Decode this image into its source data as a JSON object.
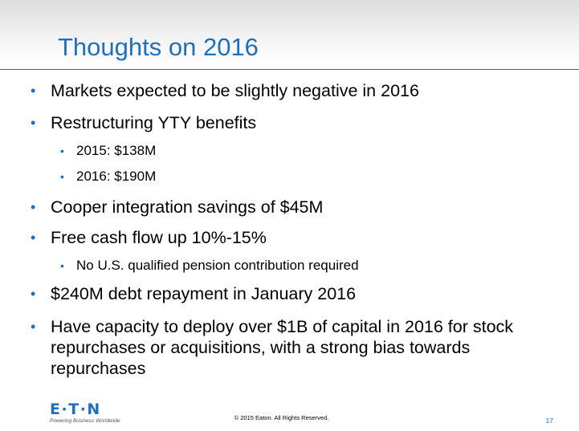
{
  "slide": {
    "title": "Thoughts on 2016",
    "bullets": [
      {
        "level": 1,
        "text": "Markets expected to be slightly negative in 2016"
      },
      {
        "level": 1,
        "text": "Restructuring YTY benefits"
      },
      {
        "level": 2,
        "text": "2015: $138M"
      },
      {
        "level": 2,
        "text": "2016: $190M"
      },
      {
        "level": 1,
        "text": "Cooper integration savings of $45M"
      },
      {
        "level": 1,
        "text": "Free cash flow up 10%-15%"
      },
      {
        "level": 2,
        "text": "No U.S. qualified pension contribution required"
      },
      {
        "level": 1,
        "text": "$240M debt repayment in January 2016"
      },
      {
        "level": 1,
        "text": "Have capacity to deploy over $1B of capital in 2016 for stock repurchases or acquisitions, with a strong bias towards repurchases"
      }
    ],
    "bullet_glyph": "•"
  },
  "footer": {
    "logo_text": "E·T·N",
    "logo_tagline": "Powering Business Worldwide",
    "copyright": "© 2015 Eaton. All Rights Reserved.",
    "page_number": "17"
  },
  "colors": {
    "accent": "#1f6fbf",
    "text": "#000000",
    "rule": "#5a5a5a"
  }
}
